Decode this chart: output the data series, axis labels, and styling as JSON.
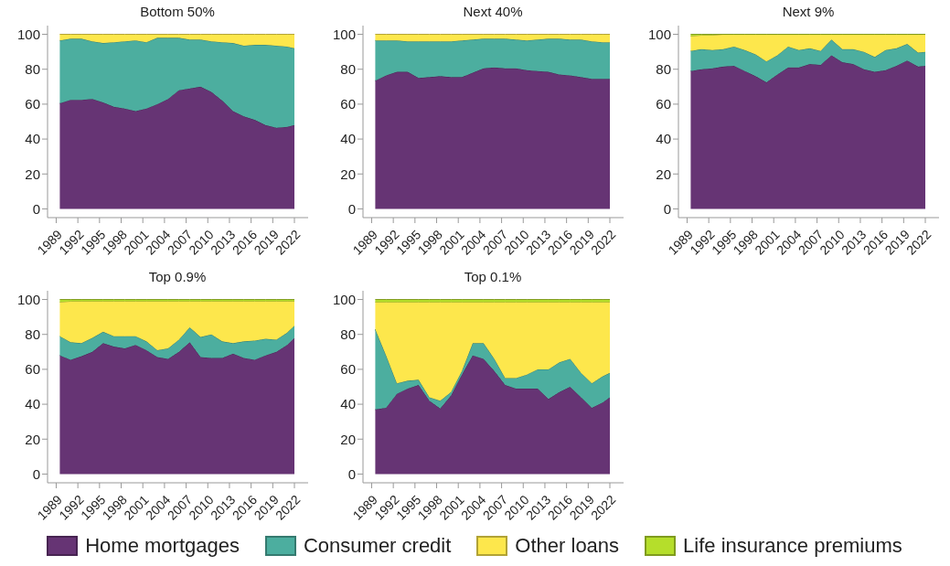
{
  "chart_data": [
    {
      "type": "area",
      "title": "Bottom 50%",
      "stacked": true,
      "xlim": [
        1987.8,
        2023.9
      ],
      "xticks": [
        1989,
        1992,
        1995,
        1998,
        2001,
        2004,
        2007,
        2010,
        2013,
        2016,
        2019,
        2022
      ],
      "ylim": [
        -5,
        105
      ],
      "yticks": [
        0,
        20,
        40,
        60,
        80,
        100
      ],
      "x": [
        1989.5,
        1991,
        1992.5,
        1994,
        1995.5,
        1997,
        1998.5,
        2000,
        2001.5,
        2003,
        2004.5,
        2006,
        2007.5,
        2009,
        2010.5,
        2012,
        2013.5,
        2015,
        2016.5,
        2018,
        2019.5,
        2021,
        2022
      ],
      "series": [
        {
          "color": "#663474",
          "values": [
            60.5,
            62.5,
            62.5,
            63,
            61,
            58.5,
            57.5,
            56,
            57.5,
            60,
            63,
            68,
            69,
            70,
            67,
            62,
            56,
            53,
            51,
            48,
            46.5,
            47,
            48
          ]
        },
        {
          "color": "#4cae9f",
          "values": [
            36,
            35,
            35,
            33,
            34,
            37,
            38.5,
            40.5,
            38,
            38,
            35,
            30,
            28,
            27,
            29,
            33.5,
            39,
            40.5,
            43,
            46,
            47,
            46,
            44
          ]
        },
        {
          "color": "#fde74c",
          "values": [
            3.5,
            2.5,
            2.5,
            4,
            5,
            4.5,
            4,
            3.5,
            4.5,
            2,
            2,
            2,
            3,
            3,
            4,
            4.5,
            5,
            6.5,
            6,
            6,
            6.5,
            7,
            8
          ]
        }
      ]
    },
    {
      "type": "area",
      "title": "Next 40%",
      "stacked": true,
      "xlim": [
        1987.8,
        2023.9
      ],
      "xticks": [
        1989,
        1992,
        1995,
        1998,
        2001,
        2004,
        2007,
        2010,
        2013,
        2016,
        2019,
        2022
      ],
      "ylim": [
        -5,
        105
      ],
      "yticks": [
        0,
        20,
        40,
        60,
        80,
        100
      ],
      "x": [
        1989.5,
        1991,
        1992.5,
        1994,
        1995.5,
        1997,
        1998.5,
        2000,
        2001.5,
        2003,
        2004.5,
        2006,
        2007.5,
        2009,
        2010.5,
        2012,
        2013.5,
        2015,
        2016.5,
        2018,
        2019.5,
        2021,
        2022
      ],
      "series": [
        {
          "color": "#663474",
          "values": [
            73.5,
            76.5,
            78.5,
            78.5,
            75,
            75.5,
            76,
            75.5,
            75.5,
            78,
            80.5,
            81,
            80.5,
            80.5,
            79.5,
            79,
            78.5,
            77,
            76.5,
            75.5,
            74.5,
            74.5,
            74.5
          ]
        },
        {
          "color": "#4cae9f",
          "values": [
            23,
            20,
            18,
            17.5,
            21,
            20.5,
            20,
            20.5,
            21,
            19,
            17,
            16.5,
            17,
            16.5,
            17,
            18,
            19,
            20.5,
            20.5,
            21.5,
            21.5,
            21,
            21
          ]
        },
        {
          "color": "#fde74c",
          "values": [
            3.5,
            3.5,
            3.5,
            4,
            4,
            4,
            4,
            4,
            3.5,
            3,
            2.5,
            2.5,
            2.5,
            3,
            3.5,
            3,
            2.5,
            2.5,
            3,
            3,
            4,
            4.5,
            4.5
          ]
        }
      ]
    },
    {
      "type": "area",
      "title": "Next 9%",
      "stacked": true,
      "xlim": [
        1987.8,
        2023.9
      ],
      "xticks": [
        1989,
        1992,
        1995,
        1998,
        2001,
        2004,
        2007,
        2010,
        2013,
        2016,
        2019,
        2022
      ],
      "ylim": [
        -5,
        105
      ],
      "yticks": [
        0,
        20,
        40,
        60,
        80,
        100
      ],
      "x": [
        1989.5,
        1991,
        1992.5,
        1994,
        1995.5,
        1997,
        1998.5,
        2000,
        2001.5,
        2003,
        2004.5,
        2006,
        2007.5,
        2009,
        2010.5,
        2012,
        2013.5,
        2015,
        2016.5,
        2018,
        2019.5,
        2021,
        2022
      ],
      "series": [
        {
          "color": "#663474",
          "values": [
            79,
            80,
            80.5,
            81.5,
            82,
            79,
            76,
            72.5,
            77,
            81,
            81,
            83,
            82.5,
            88,
            84,
            83,
            80,
            78.5,
            79.5,
            82,
            85,
            81.5,
            82
          ]
        },
        {
          "color": "#4cae9f",
          "values": [
            11.5,
            11.5,
            10.5,
            10,
            11,
            12,
            12.5,
            12,
            11,
            12,
            10,
            9,
            8,
            9,
            7.5,
            8.5,
            10,
            8.5,
            11.5,
            10,
            9.5,
            8,
            8
          ]
        },
        {
          "color": "#fde74c",
          "values": [
            8.5,
            8,
            8.5,
            8.5,
            7,
            9,
            11.5,
            15.5,
            12,
            7,
            9,
            8,
            9.5,
            3,
            8.5,
            8.5,
            10,
            13,
            9,
            8,
            5.5,
            10.5,
            10
          ]
        },
        {
          "color": "#b5de2b",
          "values": [
            1,
            0.5,
            0.5,
            0,
            0,
            0,
            0,
            0,
            0,
            0,
            0,
            0,
            0,
            0,
            0,
            0,
            0,
            0,
            0,
            0,
            0,
            0,
            0
          ]
        }
      ]
    },
    {
      "type": "area",
      "title": "Top 0.9%",
      "stacked": true,
      "legend": "bottom",
      "xlim": [
        1987.8,
        2023.9
      ],
      "xticks": [
        1989,
        1992,
        1995,
        1998,
        2001,
        2004,
        2007,
        2010,
        2013,
        2016,
        2019,
        2022
      ],
      "ylim": [
        -5,
        105
      ],
      "yticks": [
        0,
        20,
        40,
        60,
        80,
        100
      ],
      "x": [
        1989.5,
        1991,
        1992.5,
        1994,
        1995.5,
        1997,
        1998.5,
        2000,
        2001.5,
        2003,
        2004.5,
        2006,
        2007.5,
        2009,
        2010.5,
        2012,
        2013.5,
        2015,
        2016.5,
        2018,
        2019.5,
        2021,
        2022
      ],
      "series": [
        {
          "name": "Home mortgages",
          "color": "#663474",
          "values": [
            68,
            65.5,
            67.5,
            70,
            75,
            73,
            72,
            74,
            71,
            67,
            66,
            70,
            75.5,
            67,
            66.5,
            66.5,
            69,
            66.5,
            65.5,
            68,
            70,
            74,
            78
          ]
        },
        {
          "name": "Consumer credit",
          "color": "#4cae9f",
          "values": [
            11,
            10,
            7.5,
            8,
            6.5,
            6,
            7,
            5,
            5,
            4,
            6,
            7,
            8.5,
            11.5,
            13.5,
            9.5,
            6,
            9.5,
            11,
            9.5,
            7,
            7,
            7
          ]
        },
        {
          "name": "Other loans",
          "color": "#fde74c",
          "values": [
            19.5,
            23.5,
            24,
            21,
            17.5,
            20,
            20,
            20,
            23,
            28,
            27,
            22,
            15,
            20.5,
            19,
            23,
            24,
            23,
            22.5,
            21.5,
            22,
            18,
            14
          ]
        },
        {
          "name": "Life insurance premiums",
          "color": "#b5de2b",
          "values": [
            1.5,
            1,
            1,
            1,
            1,
            1,
            1,
            1,
            1,
            1,
            1,
            1,
            1,
            1,
            1,
            1,
            1,
            1,
            1,
            1,
            1,
            1,
            1
          ]
        }
      ]
    },
    {
      "type": "area",
      "title": "Top 0.1%",
      "stacked": true,
      "xlim": [
        1987.8,
        2023.9
      ],
      "xticks": [
        1989,
        1992,
        1995,
        1998,
        2001,
        2004,
        2007,
        2010,
        2013,
        2016,
        2019,
        2022
      ],
      "ylim": [
        -5,
        105
      ],
      "yticks": [
        0,
        20,
        40,
        60,
        80,
        100
      ],
      "x": [
        1989.5,
        1991,
        1992.5,
        1994,
        1995.5,
        1997,
        1998.5,
        2000,
        2001.5,
        2003,
        2004.5,
        2006,
        2007.5,
        2009,
        2010.5,
        2012,
        2013.5,
        2015,
        2016.5,
        2018,
        2019.5,
        2021,
        2022
      ],
      "series": [
        {
          "color": "#663474",
          "values": [
            37,
            38,
            46,
            49,
            51,
            42,
            37.5,
            45,
            57,
            68,
            66,
            59,
            51,
            49,
            49,
            49,
            43,
            47,
            50,
            44,
            38,
            41,
            44
          ]
        },
        {
          "color": "#4cae9f",
          "values": [
            46,
            30,
            6,
            4.5,
            3,
            2,
            4.5,
            2,
            2,
            7,
            9,
            7,
            4,
            6,
            8,
            11,
            17,
            17,
            16,
            14,
            14,
            15,
            14
          ]
        },
        {
          "color": "#fde74c",
          "values": [
            15.5,
            30.5,
            46.5,
            45,
            44.5,
            54.5,
            56.5,
            51.5,
            39.5,
            23.5,
            23.5,
            32.5,
            43.5,
            43.5,
            41.5,
            38.5,
            38.5,
            34.5,
            32.5,
            40.5,
            46.5,
            42.5,
            40.5
          ]
        },
        {
          "color": "#b5de2b",
          "values": [
            1.5,
            1.5,
            1.5,
            1.5,
            1.5,
            1.5,
            1.5,
            1.5,
            1.5,
            1.5,
            1.5,
            1.5,
            1.5,
            1.5,
            1.5,
            1.5,
            1.5,
            1.5,
            1.5,
            1.5,
            1.5,
            1.5,
            1.5
          ]
        }
      ]
    }
  ]
}
